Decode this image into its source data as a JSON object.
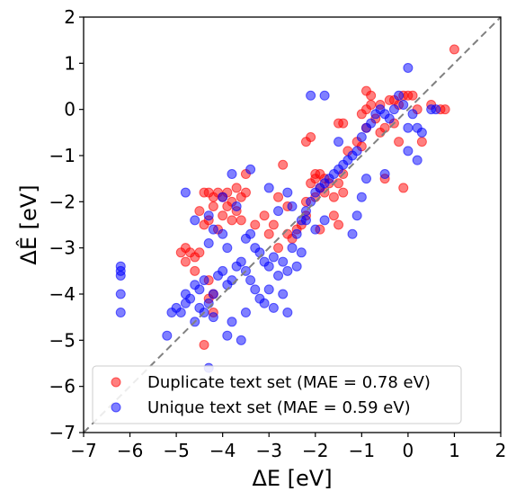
{
  "chart_data": {
    "type": "scatter",
    "xlabel": "ΔE [eV]",
    "ylabel": "ΔÊ [eV]",
    "xlim": [
      -7,
      2
    ],
    "ylim": [
      -7,
      2
    ],
    "xticks": [
      "−7",
      "−6",
      "−5",
      "−4",
      "−3",
      "−2",
      "−1",
      "0",
      "1",
      "2"
    ],
    "yticks": [
      "−7",
      "−6",
      "−5",
      "−4",
      "−3",
      "−2",
      "−1",
      "0",
      "1",
      "2"
    ],
    "reference_line": "y = x (dashed grey)",
    "legend_position": "lower-left",
    "series": [
      {
        "name": "Duplicate text set (MAE = 0.78 eV)",
        "color": "#ff0000",
        "points": [
          [
            -4.9,
            -3.1
          ],
          [
            -4.8,
            -3.0
          ],
          [
            -4.7,
            -3.1
          ],
          [
            -4.6,
            -3.2
          ],
          [
            -4.5,
            -3.1
          ],
          [
            -4.8,
            -3.3
          ],
          [
            -4.4,
            -1.8
          ],
          [
            -4.3,
            -1.8
          ],
          [
            -4.2,
            -1.9
          ],
          [
            -4.1,
            -1.8
          ],
          [
            -4.0,
            -1.9
          ],
          [
            -3.9,
            -1.8
          ],
          [
            -3.8,
            -2.0
          ],
          [
            -3.7,
            -1.7
          ],
          [
            -3.6,
            -1.9
          ],
          [
            -3.5,
            -1.8
          ],
          [
            -3.9,
            -2.1
          ],
          [
            -4.2,
            -2.1
          ],
          [
            -4.3,
            -2.4
          ],
          [
            -4.0,
            -2.3
          ],
          [
            -4.4,
            -2.5
          ],
          [
            -3.7,
            -2.2
          ],
          [
            -4.5,
            -2.2
          ],
          [
            -4.1,
            -2.6
          ],
          [
            -3.5,
            -1.4
          ],
          [
            -3.6,
            -2.4
          ],
          [
            -3.8,
            -2.4
          ],
          [
            -4.6,
            -3.5
          ],
          [
            -4.3,
            -3.7
          ],
          [
            -4.2,
            -4.0
          ],
          [
            -4.3,
            -4.1
          ],
          [
            -4.4,
            -5.1
          ],
          [
            -3.3,
            -2.5
          ],
          [
            -3.0,
            -2.7
          ],
          [
            -2.7,
            -1.2
          ],
          [
            -2.6,
            -2.7
          ],
          [
            -2.5,
            -2.8
          ],
          [
            -2.4,
            -2.6
          ],
          [
            -2.3,
            -2.5
          ],
          [
            -2.2,
            -2.3
          ],
          [
            -2.2,
            -2.0
          ],
          [
            -2.1,
            -1.6
          ],
          [
            -2.0,
            -1.4
          ],
          [
            -2.0,
            -1.5
          ],
          [
            -1.9,
            -1.4
          ],
          [
            -1.8,
            -1.5
          ],
          [
            -1.7,
            -1.6
          ],
          [
            -1.9,
            -1.7
          ],
          [
            -2.0,
            -1.9
          ],
          [
            -1.8,
            -1.8
          ],
          [
            -1.6,
            -1.9
          ],
          [
            -1.5,
            -1.6
          ],
          [
            -1.4,
            -1.4
          ],
          [
            -1.4,
            -1.8
          ],
          [
            -1.6,
            -2.3
          ],
          [
            -1.5,
            -2.5
          ],
          [
            -2.2,
            -0.7
          ],
          [
            -2.1,
            -0.6
          ],
          [
            -1.3,
            -0.9
          ],
          [
            -1.5,
            -0.3
          ],
          [
            -1.4,
            -0.3
          ],
          [
            -1.1,
            -0.7
          ],
          [
            -1.0,
            -0.8
          ],
          [
            -0.9,
            -0.4
          ],
          [
            -1.0,
            -0.1
          ],
          [
            -0.9,
            0.0
          ],
          [
            -0.8,
            0.1
          ],
          [
            -0.9,
            0.4
          ],
          [
            -0.8,
            0.3
          ],
          [
            -0.7,
            -0.2
          ],
          [
            -0.6,
            -0.5
          ],
          [
            -0.5,
            -0.4
          ],
          [
            -0.4,
            0.2
          ],
          [
            -0.3,
            0.2
          ],
          [
            -0.2,
            0.1
          ],
          [
            -0.1,
            0.3
          ],
          [
            0.0,
            0.3
          ],
          [
            0.1,
            0.3
          ],
          [
            0.2,
            0.0
          ],
          [
            -0.3,
            -0.3
          ],
          [
            -0.6,
            0.1
          ],
          [
            -0.2,
            -0.7
          ],
          [
            0.3,
            -0.7
          ],
          [
            0.5,
            0.1
          ],
          [
            0.7,
            0.0
          ],
          [
            0.8,
            0.0
          ],
          [
            1.0,
            1.3
          ],
          [
            -0.1,
            -1.7
          ],
          [
            -0.5,
            -1.5
          ],
          [
            -2.6,
            -2.1
          ],
          [
            -2.9,
            -2.5
          ],
          [
            -2.8,
            -1.9
          ],
          [
            -3.1,
            -2.3
          ],
          [
            -1.9,
            -2.6
          ],
          [
            -2.8,
            -3.0
          ],
          [
            -4.2,
            -4.4
          ]
        ]
      },
      {
        "name": "Unique text set (MAE = 0.59 eV)",
        "color": "#0000ff",
        "points": [
          [
            -6.2,
            -3.4
          ],
          [
            -6.2,
            -3.5
          ],
          [
            -6.2,
            -3.6
          ],
          [
            -6.2,
            -4.0
          ],
          [
            -6.2,
            -4.4
          ],
          [
            -5.2,
            -4.9
          ],
          [
            -5.0,
            -4.3
          ],
          [
            -4.9,
            -4.4
          ],
          [
            -4.8,
            -4.2
          ],
          [
            -4.8,
            -4.0
          ],
          [
            -4.7,
            -4.1
          ],
          [
            -4.6,
            -3.8
          ],
          [
            -4.5,
            -3.9
          ],
          [
            -4.4,
            -3.7
          ],
          [
            -4.5,
            -4.3
          ],
          [
            -4.4,
            -4.4
          ],
          [
            -4.3,
            -4.2
          ],
          [
            -4.2,
            -4.0
          ],
          [
            -4.1,
            -3.6
          ],
          [
            -4.0,
            -3.5
          ],
          [
            -3.9,
            -3.8
          ],
          [
            -3.8,
            -3.7
          ],
          [
            -3.7,
            -3.4
          ],
          [
            -3.6,
            -3.3
          ],
          [
            -3.9,
            -3.0
          ],
          [
            -4.0,
            -2.7
          ],
          [
            -4.2,
            -2.6
          ],
          [
            -4.3,
            -2.9
          ],
          [
            -4.6,
            -2.4
          ],
          [
            -4.3,
            -2.3
          ],
          [
            -4.0,
            -1.9
          ],
          [
            -3.7,
            -2.1
          ],
          [
            -3.5,
            -2.8
          ],
          [
            -3.4,
            -2.7
          ],
          [
            -3.3,
            -3.0
          ],
          [
            -3.2,
            -3.1
          ],
          [
            -3.1,
            -3.3
          ],
          [
            -3.0,
            -3.4
          ],
          [
            -2.9,
            -3.2
          ],
          [
            -3.5,
            -3.5
          ],
          [
            -3.4,
            -3.7
          ],
          [
            -3.3,
            -3.9
          ],
          [
            -3.2,
            -4.1
          ],
          [
            -3.1,
            -4.2
          ],
          [
            -3.0,
            -3.9
          ],
          [
            -2.8,
            -3.6
          ],
          [
            -2.7,
            -3.3
          ],
          [
            -2.7,
            -4.0
          ],
          [
            -2.6,
            -3.5
          ],
          [
            -2.5,
            -3.0
          ],
          [
            -2.4,
            -2.7
          ],
          [
            -2.3,
            -2.4
          ],
          [
            -2.2,
            -2.2
          ],
          [
            -2.1,
            -2.0
          ],
          [
            -2.0,
            -1.8
          ],
          [
            -1.9,
            -1.7
          ],
          [
            -1.8,
            -1.6
          ],
          [
            -1.7,
            -1.5
          ],
          [
            -1.6,
            -1.4
          ],
          [
            -1.5,
            -1.3
          ],
          [
            -1.4,
            -1.2
          ],
          [
            -1.3,
            -1.1
          ],
          [
            -1.2,
            -1.0
          ],
          [
            -1.1,
            -0.9
          ],
          [
            -1.0,
            -0.6
          ],
          [
            -0.9,
            -0.4
          ],
          [
            -0.8,
            -0.3
          ],
          [
            -0.7,
            -0.1
          ],
          [
            -0.6,
            0.0
          ],
          [
            -0.5,
            -0.1
          ],
          [
            -0.4,
            -0.2
          ],
          [
            -0.3,
            0.0
          ],
          [
            -0.2,
            0.3
          ],
          [
            -0.1,
            0.1
          ],
          [
            0.0,
            0.9
          ],
          [
            0.0,
            -0.4
          ],
          [
            0.1,
            -0.1
          ],
          [
            0.2,
            -0.4
          ],
          [
            0.3,
            -0.5
          ],
          [
            0.5,
            0.0
          ],
          [
            0.6,
            0.0
          ],
          [
            -2.1,
            0.3
          ],
          [
            -1.8,
            0.3
          ],
          [
            -1.5,
            -0.7
          ],
          [
            -1.1,
            -2.3
          ],
          [
            -0.9,
            -1.5
          ],
          [
            -0.5,
            -1.4
          ],
          [
            0.0,
            -0.9
          ],
          [
            0.2,
            -1.1
          ],
          [
            -2.6,
            -1.8
          ],
          [
            -2.5,
            -2.1
          ],
          [
            -2.2,
            -2.4
          ],
          [
            -2.0,
            -2.6
          ],
          [
            -1.8,
            -2.4
          ],
          [
            -3.0,
            -1.7
          ],
          [
            -2.8,
            -2.2
          ],
          [
            -3.5,
            -4.4
          ],
          [
            -3.8,
            -4.6
          ],
          [
            -3.9,
            -4.9
          ],
          [
            -3.6,
            -5.0
          ],
          [
            -4.3,
            -5.6
          ],
          [
            -4.6,
            -4.6
          ],
          [
            -4.2,
            -4.5
          ],
          [
            -3.8,
            -1.4
          ],
          [
            -3.4,
            -1.3
          ],
          [
            -4.8,
            -1.8
          ],
          [
            -5.1,
            -4.4
          ],
          [
            -2.4,
            -3.4
          ],
          [
            -2.3,
            -3.1
          ],
          [
            -2.9,
            -4.3
          ],
          [
            -2.6,
            -4.4
          ],
          [
            -1.0,
            -1.9
          ],
          [
            -1.2,
            -2.7
          ]
        ]
      }
    ]
  }
}
